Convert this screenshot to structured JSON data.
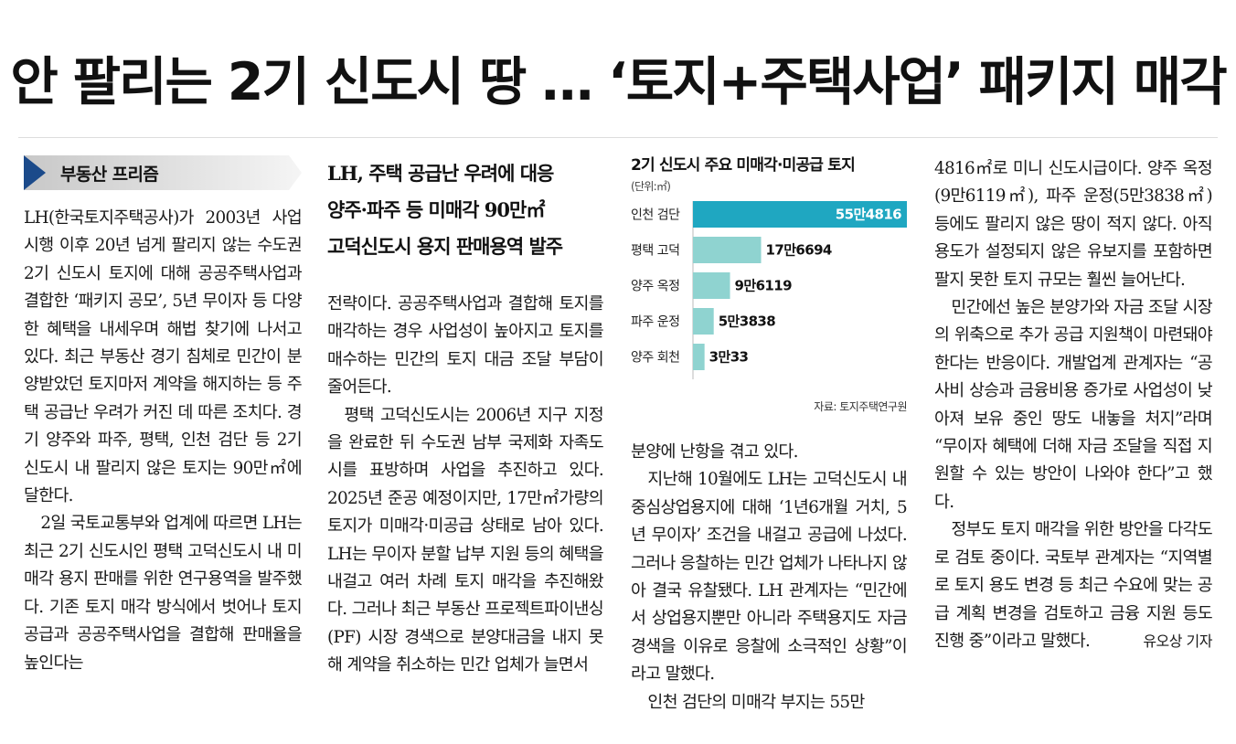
{
  "headline": "안 팔리는 2기 신도시 땅 … ‘토지+주택사업’ 패키지 매각",
  "section": "부동산 프리즘",
  "subhead": [
    "LH, 주택 공급난 우려에 대응",
    "양주·파주 등 미매각 90만㎡",
    "고덕신도시 용지 판매용역 발주"
  ],
  "col1": [
    "LH(한국토지주택공사)가 2003년 사업 시행 이후 20년 넘게 팔리지 않는 수도권 2기 신도시 토지에 대해 공공주택사업과 결합한 ‘패키지 공모’, 5년 무이자 등 다양한 혜택을 내세우며 해법 찾기에 나서고 있다. 최근 부동산 경기 침체로 민간이 분양받았던 토지마저 계약을 해지하는 등 주택 공급난 우려가 커진 데 따른 조치다. 경기 양주와 파주, 평택, 인천 검단 등 2기 신도시 내 팔리지 않은 토지는 90만㎡에 달한다.",
    "2일 국토교통부와 업계에 따르면 LH는 최근 2기 신도시인 평택 고덕신도시 내 미매각 용지 판매를 위한 연구용역을 발주했다. 기존 토지 매각 방식에서 벗어나 토지 공급과 공공주택사업을 결합해 판매율을 높인다는"
  ],
  "col2": [
    "전략이다. 공공주택사업과 결합해 토지를 매각하는 경우 사업성이 높아지고 토지를 매수하는 민간의 토지 대금 조달 부담이 줄어든다.",
    "평택 고덕신도시는 2006년 지구 지정을 완료한 뒤 수도권 남부 국제화 자족도시를 표방하며 사업을 추진하고 있다. 2025년 준공 예정이지만, 17만㎡가량의 토지가 미매각·미공급 상태로 남아 있다. LH는 무이자 분할 납부 지원 등의 혜택을 내걸고 여러 차례 토지 매각을 추진해왔다. 그러나 최근 부동산 프로젝트파이낸싱(PF) 시장 경색으로 분양대금을 내지 못해 계약을 취소하는 민간 업체가 늘면서"
  ],
  "col3": [
    "분양에 난항을 겪고 있다.",
    "지난해 10월에도 LH는 고덕신도시 내 중심상업용지에 대해 ‘1년6개월 거치, 5년 무이자’ 조건을 내걸고 공급에 나섰다. 그러나 응찰하는 민간 업체가 나타나지 않아 결국 유찰됐다. LH 관계자는 “민간에서 상업용지뿐만 아니라 주택용지도 자금 경색을 이유로 응찰에 소극적인 상황”이라고 말했다.",
    "인천 검단의 미매각 부지는 55만"
  ],
  "col4": [
    "4816㎡로 미니 신도시급이다. 양주 옥정(9만6119㎡), 파주 운정(5만3838㎡) 등에도 팔리지 않은 땅이 적지 않다. 아직 용도가 설정되지 않은 유보지를 포함하면 팔지 못한 토지 규모는 훨씬 늘어난다.",
    "민간에선 높은 분양가와 자금 조달 시장의 위축으로 추가 공급 지원책이 마련돼야 한다는 반응이다. 개발업계 관계자는 “공사비 상승과 금융비용 증가로 사업성이 낮아져 보유 중인 땅도 내놓을 처지”라며 “무이자 혜택에 더해 자금 조달을 직접 지원할 수 있는 방안이 나와야 한다”고 했다.",
    "정부도 토지 매각을 위한 방안을 다각도로 검토 중이다. 국토부 관계자는 “지역별로 토지 용도 변경 등 최근 수요에 맞는 공급 계획 변경을 검토하고 금융 지원 등도 진행 중”이라고 말했다."
  ],
  "byline": "유오상 기자",
  "colors": {
    "highlight_bar": "#1fa7c1",
    "bar": "#8fd3d0",
    "section_arrow": "#1b4a8a"
  },
  "chart_data": {
    "type": "bar",
    "orientation": "horizontal",
    "title": "2기 신도시 주요 미매각·미공급 토지",
    "unit_label": "(단위:㎡)",
    "source": "자료: 토지주택연구원",
    "categories": [
      "인천 검단",
      "평택 고덕",
      "양주 옥정",
      "파주 운정",
      "양주 회천"
    ],
    "values": [
      554816,
      176694,
      96119,
      53838,
      30033
    ],
    "value_labels": [
      "55만4816",
      "17만6694",
      "9만6119",
      "5만3838",
      "3만33"
    ],
    "ylabel": "",
    "xlabel": ""
  }
}
